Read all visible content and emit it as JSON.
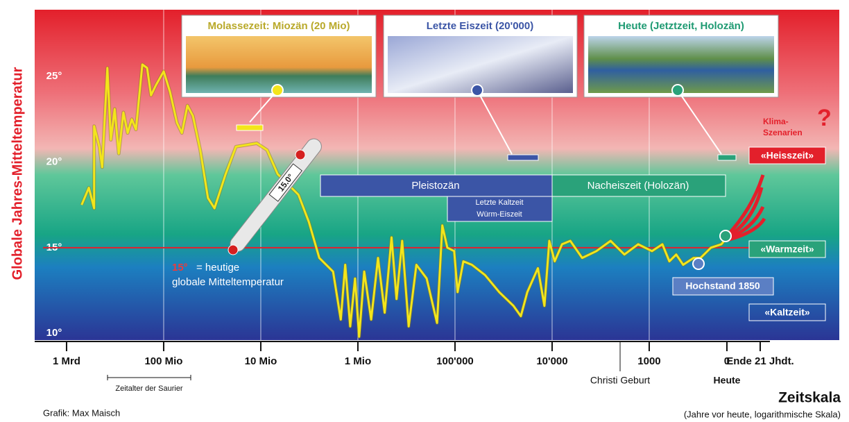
{
  "chart_data": {
    "type": "line",
    "y_label": "Globale Jahres-Mitteltemperatur",
    "x_label": "Zeitskala",
    "x_note": "(Jahre vor heute, logarithmische Skala)",
    "credit": "Grafik: Max Maisch",
    "x_scale": "log",
    "xlim": [
      2130000000,
      -270
    ],
    "xticks": [
      {
        "value": 1000000000,
        "label": "1 Mrd"
      },
      {
        "value": 100000000,
        "label": "100 Mio"
      },
      {
        "value": 10000000,
        "label": "10 Mio"
      },
      {
        "value": 1000000,
        "label": "1 Mio"
      },
      {
        "value": 100000,
        "label": "100'000"
      },
      {
        "value": 10000,
        "label": "10'000"
      },
      1000,
      0,
      {
        "value": -80,
        "label": "Ende 21 Jhdt."
      }
    ],
    "ylim": [
      9.6,
      28.9
    ],
    "yticks": [
      {
        "value": 10,
        "label": "10°"
      },
      {
        "value": 15,
        "label": "15°"
      },
      {
        "value": 20,
        "label": "20°"
      },
      {
        "value": 25,
        "label": "25°"
      }
    ],
    "color": "#f3e51b",
    "reference_line": {
      "value": 15,
      "color": "#e3202b"
    },
    "x": [
      700000000,
      590000000,
      520000000,
      520000000,
      460000000,
      430000000,
      380000000,
      350000000,
      320000000,
      290000000,
      260000000,
      235000000,
      213000000,
      193000000,
      166000000,
      148000000,
      135000000,
      120000000,
      100000000,
      86000000,
      73000000,
      65000000,
      57000000,
      50000000,
      42000000,
      35000000,
      30000000,
      23000000,
      18000000,
      11000000,
      8600000,
      6700000,
      4100000,
      3200000,
      2500000,
      1800000,
      1500000,
      1350000,
      1200000,
      1070000,
      970000,
      860000,
      730000,
      620000,
      530000,
      450000,
      400000,
      350000,
      300000,
      250000,
      196000,
      153000,
      135000,
      120000,
      102000,
      94000,
      82000,
      67000,
      49000,
      35000,
      25000,
      21000,
      18000,
      14000,
      12000,
      10700,
      9400,
      7900,
      6500,
      4900,
      3500,
      2500,
      1800,
      1300,
      964,
      830,
      741,
      652,
      563,
      429,
      339,
      205,
      71,
      0
    ],
    "values": [
      17.5,
      18.5,
      17.3,
      22.1,
      20.9,
      19.7,
      25.5,
      21.3,
      23.1,
      20.5,
      22.9,
      21.7,
      22.5,
      21.9,
      25.7,
      25.5,
      23.9,
      24.5,
      25.3,
      24.1,
      22.3,
      21.7,
      23.3,
      22.7,
      20.7,
      17.9,
      17.3,
      19.3,
      20.9,
      21.1,
      20.7,
      19.3,
      18.1,
      16.5,
      14.4,
      13.6,
      10.8,
      14.0,
      10.4,
      13.2,
      9.8,
      13.6,
      10.8,
      14.4,
      11.2,
      15.6,
      12.0,
      15.4,
      10.4,
      14.0,
      13.2,
      10.6,
      16.3,
      15.0,
      14.8,
      12.4,
      14.2,
      14.0,
      13.4,
      12.4,
      11.6,
      11.0,
      12.4,
      13.8,
      11.6,
      15.4,
      14.2,
      15.2,
      15.4,
      14.4,
      14.8,
      15.4,
      14.6,
      15.2,
      14.8,
      15.2,
      14.2,
      14.6,
      14.0,
      14.4,
      14.4,
      15.0,
      15.2,
      15.6
    ],
    "photos": [
      "Molassezeit: Miozän (20 Mio)",
      "Letzte Eiszeit (20'000)",
      "Heute (Jetztzeit, Holozän)"
    ],
    "periods": [
      "Pleistozän",
      "Nacheiszeit (Holozän)",
      "Letzte Kaltzeit",
      "Würm-Eiszeit"
    ],
    "annotations": {
      "thermometer": "15.0°",
      "now_temp_value": "15°",
      "now_temp_text1": "= heutige",
      "now_temp_text2": "globale Mitteltemperatur",
      "peak_1850": "Hochstand 1850",
      "scenarios_1": "Klima-",
      "scenarios_2": "Szenarien",
      "question": "?",
      "hot": "«Heisszeit»",
      "warm": "«Warmzeit»",
      "cold": "«Kaltzeit»",
      "dinosaurs": "Zeitalter der Saurier",
      "christ": "Christi Geburt",
      "today": "Heute"
    }
  }
}
